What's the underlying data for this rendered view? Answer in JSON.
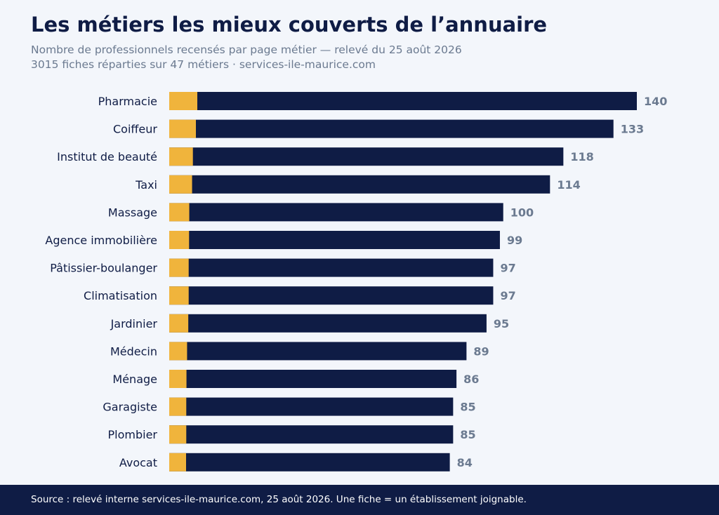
{
  "header": {
    "title": "Les métiers les mieux couverts de l’annuaire",
    "subtitle_line1": "Nombre de professionnels recensés par page métier — relevé du 25 août 2026",
    "subtitle_line2": "3015 fiches réparties sur 47 métiers · services-ile-maurice.com"
  },
  "colors": {
    "bar": "#0f1c45",
    "accent": "#f0b43c",
    "value_label": "#6b7a90",
    "category_label": "#0f1c45",
    "footer_bg": "#0f1c45",
    "background": "#f3f6fb"
  },
  "chart_data": {
    "type": "bar",
    "orientation": "horizontal",
    "categories": [
      "Pharmacie",
      "Coiffeur",
      "Institut de beauté",
      "Taxi",
      "Massage",
      "Agence immobilière",
      "Pâtissier-boulanger",
      "Climatisation",
      "Jardinier",
      "Médecin",
      "Ménage",
      "Garagiste",
      "Plombier",
      "Avocat"
    ],
    "values": [
      140,
      133,
      118,
      114,
      100,
      99,
      97,
      97,
      95,
      89,
      86,
      85,
      85,
      84
    ],
    "value_labels": [
      "140",
      "133",
      "118",
      "114",
      "100",
      "99",
      "97",
      "97",
      "95",
      "89",
      "86",
      "85",
      "85",
      "84"
    ],
    "xlim": [
      0,
      140
    ],
    "grid": false,
    "legend": "none"
  },
  "footer": {
    "text": "Source : relevé interne services-ile-maurice.com, 25 août 2026. Une fiche = un établissement joignable."
  }
}
